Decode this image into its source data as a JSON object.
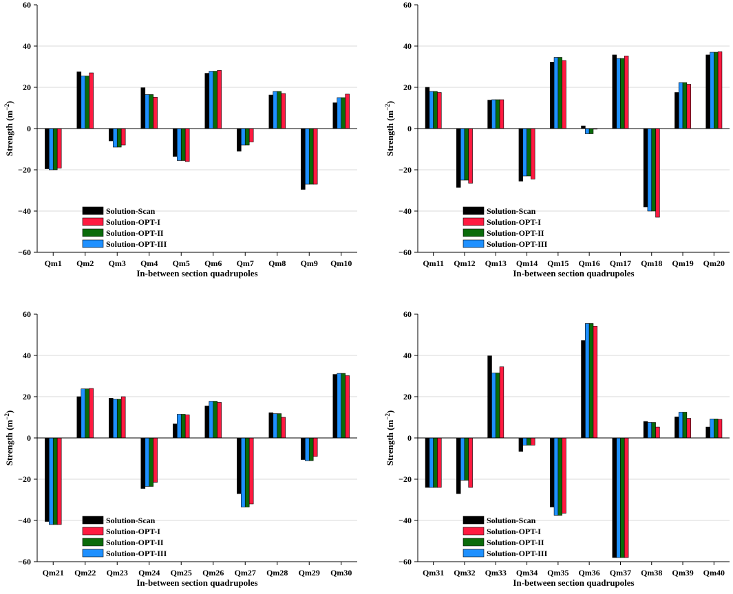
{
  "legend_labels": [
    "Solution-Scan",
    "Solution-OPT-I",
    "Solution-OPT-II",
    "Solution-OPT-III"
  ],
  "colors": {
    "scan": "#000000",
    "opt1": "#ff1a40",
    "opt2": "#0a6b0a",
    "opt3": "#1e90ff",
    "grid": "#d9d9d9",
    "axis": "#000000"
  },
  "chart_data": [
    {
      "type": "bar",
      "xlabel": "In-between section quadrupoles",
      "ylabel": "Strength (m",
      "ylabel_sup": "−2",
      "ylabel_close": ")",
      "ylim": [
        -60,
        60
      ],
      "yticks": [
        -60,
        -40,
        -20,
        0,
        20,
        40,
        60
      ],
      "grid": true,
      "legend_position": "lower-left",
      "categories": [
        "Qm1",
        "Qm2",
        "Qm3",
        "Qm4",
        "Qm5",
        "Qm6",
        "Qm7",
        "Qm8",
        "Qm9",
        "Qm10"
      ],
      "series": [
        {
          "name": "Solution-Scan",
          "values": [
            -19.5,
            27.5,
            -6,
            19.8,
            -13.5,
            26.8,
            -11,
            16.3,
            -29.5,
            12.5
          ]
        },
        {
          "name": "Solution-OPT-III",
          "values": [
            -20,
            25.5,
            -9,
            16.5,
            -15.5,
            27.8,
            -8,
            18,
            -27,
            15
          ]
        },
        {
          "name": "Solution-OPT-II",
          "values": [
            -20,
            25.5,
            -9,
            16.5,
            -15.5,
            27.8,
            -8,
            18,
            -27,
            15
          ]
        },
        {
          "name": "Solution-OPT-I",
          "values": [
            -19.2,
            27,
            -8,
            15.2,
            -16,
            28.2,
            -6.5,
            17,
            -27,
            16.7
          ]
        }
      ]
    },
    {
      "type": "bar",
      "xlabel": "In-between section quadrupoles",
      "ylabel": "Strength (m",
      "ylabel_sup": "−2",
      "ylabel_close": ")",
      "ylim": [
        -60,
        60
      ],
      "yticks": [
        -60,
        -40,
        -20,
        0,
        20,
        40,
        60
      ],
      "grid": true,
      "legend_position": "lower-left",
      "categories": [
        "Qm11",
        "Qm12",
        "Qm13",
        "Qm14",
        "Qm15",
        "Qm16",
        "Qm17",
        "Qm18",
        "Qm19",
        "Qm20"
      ],
      "series": [
        {
          "name": "Solution-Scan",
          "values": [
            20,
            -28.5,
            13.8,
            -25.5,
            32.2,
            1.3,
            35.7,
            -38,
            17.5,
            35.7
          ]
        },
        {
          "name": "Solution-OPT-III",
          "values": [
            18,
            -25,
            14,
            -23,
            34.5,
            -2.5,
            34,
            -40,
            22.3,
            37
          ]
        },
        {
          "name": "Solution-OPT-II",
          "values": [
            18,
            -25,
            14,
            -23,
            34.5,
            -2.5,
            34,
            -40,
            22.3,
            37
          ]
        },
        {
          "name": "Solution-OPT-I",
          "values": [
            17.5,
            -26.5,
            14,
            -24.5,
            33,
            -0.3,
            35.2,
            -43,
            21.5,
            37.3
          ]
        }
      ]
    },
    {
      "type": "bar",
      "xlabel": "In-between section quadrupoles",
      "ylabel": "Strength (m",
      "ylabel_sup": "−2",
      "ylabel_close": ")",
      "ylim": [
        -60,
        60
      ],
      "yticks": [
        -60,
        -40,
        -20,
        0,
        20,
        40,
        60
      ],
      "grid": true,
      "legend_position": "lower-left",
      "categories": [
        "Qm21",
        "Qm22",
        "Qm23",
        "Qm24",
        "Qm25",
        "Qm26",
        "Qm27",
        "Qm28",
        "Qm29",
        "Qm30"
      ],
      "series": [
        {
          "name": "Solution-Scan",
          "values": [
            -40.5,
            20,
            19.2,
            -24.5,
            6.8,
            15.5,
            -27,
            12.2,
            -10.5,
            30.8
          ]
        },
        {
          "name": "Solution-OPT-III",
          "values": [
            -42,
            23.8,
            18.8,
            -23.5,
            11.5,
            17.8,
            -33.5,
            11.8,
            -11,
            31.3
          ]
        },
        {
          "name": "Solution-OPT-II",
          "values": [
            -42,
            23.8,
            18.8,
            -23.5,
            11.5,
            17.8,
            -33.5,
            11.8,
            -11,
            31.3
          ]
        },
        {
          "name": "Solution-OPT-I",
          "values": [
            -42,
            24,
            20,
            -21.5,
            11.2,
            17.2,
            -32,
            10,
            -9,
            30.2
          ]
        }
      ]
    },
    {
      "type": "bar",
      "xlabel": "In-between section quadrupoles",
      "ylabel": "Strength (m",
      "ylabel_sup": "−2",
      "ylabel_close": ")",
      "ylim": [
        -60,
        60
      ],
      "yticks": [
        -60,
        -40,
        -20,
        0,
        20,
        40,
        60
      ],
      "grid": true,
      "legend_position": "lower-left",
      "categories": [
        "Qm31",
        "Qm32",
        "Qm33",
        "Qm34",
        "Qm35",
        "Qm36",
        "Qm37",
        "Qm38",
        "Qm39",
        "Qm40"
      ],
      "series": [
        {
          "name": "Solution-Scan",
          "values": [
            -24,
            -27,
            39.8,
            -6.5,
            -33.5,
            47.2,
            -58,
            8,
            10.2,
            5.3
          ]
        },
        {
          "name": "Solution-OPT-III",
          "values": [
            -24,
            -20.5,
            31.5,
            -3.5,
            -37.5,
            55.5,
            -58,
            7.5,
            12.5,
            9.2
          ]
        },
        {
          "name": "Solution-OPT-II",
          "values": [
            -24,
            -20.5,
            31.5,
            -3.5,
            -37.5,
            55.5,
            -58,
            7.5,
            12.5,
            9.2
          ]
        },
        {
          "name": "Solution-OPT-I",
          "values": [
            -24,
            -24,
            34.5,
            -3.5,
            -36.5,
            54.2,
            -58,
            5.3,
            9.5,
            9
          ]
        }
      ]
    }
  ]
}
